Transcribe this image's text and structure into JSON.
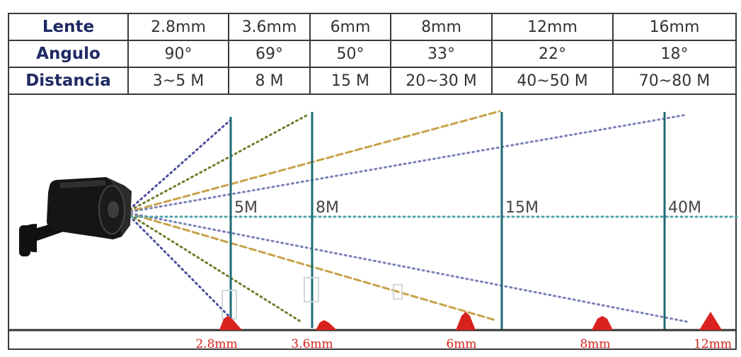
{
  "table": {
    "rows": [
      {
        "label": "Lente",
        "values": [
          "2.8mm",
          "3.6mm",
          "6mm",
          "8mm",
          "12mm",
          "16mm"
        ]
      },
      {
        "label": "Angulo",
        "values": [
          "90°",
          "69°",
          "50°",
          "33°",
          "22°",
          "18°"
        ]
      },
      {
        "label": "Distancia",
        "values": [
          "3~5 M",
          "8 M",
          "15 M",
          "20~30 M",
          "40~50 M",
          "70~80 M"
        ]
      }
    ]
  },
  "distance_markers": [
    {
      "label": "5M"
    },
    {
      "label": "8M"
    },
    {
      "label": "15M"
    },
    {
      "label": "40M"
    }
  ],
  "lens_markers": [
    {
      "label": "2.8mm"
    },
    {
      "label": "3.6mm"
    },
    {
      "label": "6mm"
    },
    {
      "label": "8mm"
    },
    {
      "label": "12mm"
    }
  ],
  "colors": {
    "header_text": "#1f2a63",
    "post": "#1d6b74",
    "cone": "#d7221d",
    "lens_label": "#d7221d",
    "fov_2_8mm": "#4a4c9c",
    "fov_3_6mm": "#6f7a2a",
    "fov_6mm": "#c8a24a",
    "fov_8mm": "#7a80b8",
    "axis": "#4fa4a8"
  },
  "icons": {
    "camera": "security-camera-icon",
    "cone": "traffic-cone-icon"
  }
}
